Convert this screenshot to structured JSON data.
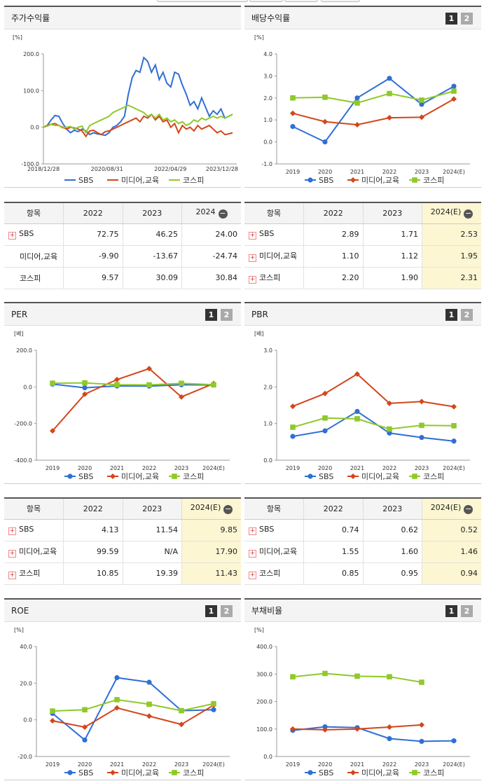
{
  "toggles": {
    "one": "1",
    "two": "2"
  },
  "colors": {
    "sbs": "#2f6fd6",
    "media": "#d3461a",
    "kospi": "#8fc92a"
  },
  "legend": {
    "sbs": "SBS",
    "media": "미디어,교육",
    "kospi": "코스피"
  },
  "charts": {
    "stock": {
      "title": "주가수익률",
      "unit": "[%]",
      "type": "line",
      "ylim": [
        -100,
        200
      ],
      "yticks": [
        "200.0",
        "100.0",
        "0.0",
        "-100.0"
      ],
      "xticks": [
        "2018/12/28",
        "2020/08/31",
        "2022/04/29",
        "2023/12/28"
      ],
      "chart_data": {
        "type": "line",
        "x_range": [
          "2018/12/28",
          "2023/12/28"
        ],
        "series": [
          {
            "name": "SBS",
            "values": [
              0,
              5,
              20,
              32,
              30,
              10,
              -5,
              -15,
              -8,
              -12,
              -5,
              -10,
              -20,
              -15,
              -18,
              -20,
              -22,
              -15,
              0,
              5,
              15,
              30,
              90,
              135,
              155,
              150,
              190,
              180,
              150,
              170,
              130,
              150,
              120,
              110,
              150,
              145,
              115,
              90,
              60,
              70,
              50,
              80,
              55,
              30,
              45,
              35,
              50,
              25,
              30,
              35
            ]
          },
          {
            "name": "미디어,교육",
            "values": [
              0,
              5,
              8,
              10,
              5,
              0,
              -5,
              0,
              -2,
              -5,
              -10,
              -25,
              -10,
              -8,
              -15,
              -20,
              -12,
              -10,
              -5,
              0,
              5,
              10,
              15,
              20,
              25,
              15,
              30,
              25,
              35,
              20,
              30,
              15,
              20,
              0,
              10,
              -15,
              5,
              -5,
              0,
              -10,
              5,
              -5,
              0,
              5,
              -5,
              -15,
              -10,
              -20,
              -18,
              -15
            ]
          },
          {
            "name": "코스피",
            "values": [
              0,
              3,
              8,
              5,
              5,
              -2,
              0,
              2,
              -5,
              0,
              3,
              -15,
              5,
              10,
              15,
              20,
              25,
              30,
              40,
              45,
              50,
              55,
              60,
              55,
              50,
              45,
              40,
              30,
              35,
              25,
              35,
              20,
              25,
              15,
              20,
              10,
              15,
              5,
              10,
              20,
              15,
              25,
              20,
              25,
              30,
              25,
              30,
              25,
              30,
              35
            ]
          }
        ]
      }
    },
    "dividend": {
      "title": "배당수익률",
      "unit": "[%]",
      "yticks": [
        "4.0",
        "3.0",
        "2.0",
        "1.0",
        "0.0",
        "-1.0"
      ],
      "ylim": [
        -1,
        4
      ],
      "categories": [
        "2019",
        "2020",
        "2021",
        "2022",
        "2023",
        "2024(E)"
      ],
      "chart_data": {
        "type": "line",
        "categories": [
          "2019",
          "2020",
          "2021",
          "2022",
          "2023",
          "2024(E)"
        ],
        "series": [
          {
            "name": "SBS",
            "values": [
              0.7,
              0.0,
              2.0,
              2.89,
              1.71,
              2.53
            ]
          },
          {
            "name": "미디어,교육",
            "values": [
              1.3,
              0.92,
              0.78,
              1.1,
              1.12,
              1.95
            ]
          },
          {
            "name": "코스피",
            "values": [
              2.0,
              2.03,
              1.77,
              2.2,
              1.9,
              2.31
            ]
          }
        ]
      }
    },
    "per": {
      "title": "PER",
      "unit": "[배]",
      "yticks": [
        "200.0",
        "0.0",
        "-200.0",
        "-400.0"
      ],
      "ylim": [
        -400,
        200
      ],
      "categories": [
        "2019",
        "2020",
        "2021",
        "2022",
        "2023",
        "2024(E)"
      ],
      "chart_data": {
        "type": "line",
        "categories": [
          "2019",
          "2020",
          "2021",
          "2022",
          "2023",
          "2024(E)"
        ],
        "series": [
          {
            "name": "SBS",
            "values": [
              15,
              -5,
              5,
              4.13,
              11.54,
              9.85
            ]
          },
          {
            "name": "미디어,교육",
            "values": [
              -240,
              -40,
              40,
              99.59,
              -55,
              17.9
            ]
          },
          {
            "name": "코스피",
            "values": [
              20,
              22,
              12,
              10.85,
              19.39,
              11.43
            ]
          }
        ]
      }
    },
    "pbr": {
      "title": "PBR",
      "unit": "[배]",
      "yticks": [
        "3.0",
        "2.0",
        "1.0",
        "0.0"
      ],
      "ylim": [
        0,
        3
      ],
      "categories": [
        "2019",
        "2020",
        "2021",
        "2022",
        "2023",
        "2024(E)"
      ],
      "chart_data": {
        "type": "line",
        "categories": [
          "2019",
          "2020",
          "2021",
          "2022",
          "2023",
          "2024(E)"
        ],
        "series": [
          {
            "name": "SBS",
            "values": [
              0.65,
              0.8,
              1.33,
              0.74,
              0.62,
              0.52
            ]
          },
          {
            "name": "미디어,교육",
            "values": [
              1.47,
              1.82,
              2.35,
              1.55,
              1.6,
              1.46
            ]
          },
          {
            "name": "코스피",
            "values": [
              0.9,
              1.15,
              1.13,
              0.85,
              0.95,
              0.94
            ]
          }
        ]
      }
    },
    "roe": {
      "title": "ROE",
      "unit": "[%]",
      "yticks": [
        "40.0",
        "20.0",
        "0.0",
        "-20.0"
      ],
      "ylim": [
        -20,
        40
      ],
      "categories": [
        "2019",
        "2020",
        "2021",
        "2022",
        "2023",
        "2024(E)"
      ],
      "chart_data": {
        "type": "line",
        "categories": [
          "2019",
          "2020",
          "2021",
          "2022",
          "2023",
          "2024(E)"
        ],
        "series": [
          {
            "name": "SBS",
            "values": [
              3.5,
              -11,
              23,
              20.5,
              5,
              5.5
            ]
          },
          {
            "name": "미디어,교육",
            "values": [
              -0.5,
              -4,
              6.5,
              2,
              -2.5,
              8
            ]
          },
          {
            "name": "코스피",
            "values": [
              4.8,
              5.5,
              11,
              8.5,
              5,
              8.8
            ]
          }
        ]
      }
    },
    "debt": {
      "title": "부채비율",
      "unit": "[%]",
      "yticks": [
        "400.0",
        "300.0",
        "200.0",
        "100.0",
        "0.0"
      ],
      "ylim": [
        0,
        400
      ],
      "categories": [
        "2019",
        "2020",
        "2021",
        "2022",
        "2023",
        "2024(E)"
      ],
      "chart_data": {
        "type": "line",
        "categories": [
          "2019",
          "2020",
          "2021",
          "2022",
          "2023",
          "2024(E)"
        ],
        "series": [
          {
            "name": "SBS",
            "values": [
              95,
              108,
              105,
              65,
              55,
              57
            ]
          },
          {
            "name": "미디어,교육",
            "values": [
              100,
              97,
              100,
              107,
              115,
              null
            ]
          },
          {
            "name": "코스피",
            "values": [
              290,
              302,
              292,
              290,
              270,
              null
            ]
          }
        ]
      }
    }
  },
  "tables": {
    "stock": {
      "headers": [
        "항목",
        "2022",
        "2023",
        "2024"
      ],
      "rows": [
        {
          "name": "SBS",
          "vals": [
            "72.75",
            "46.25",
            "24.00"
          ]
        },
        {
          "name": "미디어,교육",
          "vals": [
            "-9.90",
            "-13.67",
            "-24.74"
          ]
        },
        {
          "name": "코스피",
          "vals": [
            "9.57",
            "30.09",
            "30.84"
          ]
        }
      ]
    },
    "dividend": {
      "headers": [
        "항목",
        "2022",
        "2023",
        "2024(E)"
      ],
      "rows": [
        {
          "name": "SBS",
          "vals": [
            "2.89",
            "1.71",
            "2.53"
          ]
        },
        {
          "name": "미디어,교육",
          "vals": [
            "1.10",
            "1.12",
            "1.95"
          ]
        },
        {
          "name": "코스피",
          "vals": [
            "2.20",
            "1.90",
            "2.31"
          ]
        }
      ]
    },
    "per": {
      "headers": [
        "항목",
        "2022",
        "2023",
        "2024(E)"
      ],
      "rows": [
        {
          "name": "SBS",
          "vals": [
            "4.13",
            "11.54",
            "9.85"
          ]
        },
        {
          "name": "미디어,교육",
          "vals": [
            "99.59",
            "N/A",
            "17.90"
          ]
        },
        {
          "name": "코스피",
          "vals": [
            "10.85",
            "19.39",
            "11.43"
          ]
        }
      ]
    },
    "pbr": {
      "headers": [
        "항목",
        "2022",
        "2023",
        "2024(E)"
      ],
      "rows": [
        {
          "name": "SBS",
          "vals": [
            "0.74",
            "0.62",
            "0.52"
          ]
        },
        {
          "name": "미디어,교육",
          "vals": [
            "1.55",
            "1.60",
            "1.46"
          ]
        },
        {
          "name": "코스피",
          "vals": [
            "0.85",
            "0.95",
            "0.94"
          ]
        }
      ]
    }
  }
}
